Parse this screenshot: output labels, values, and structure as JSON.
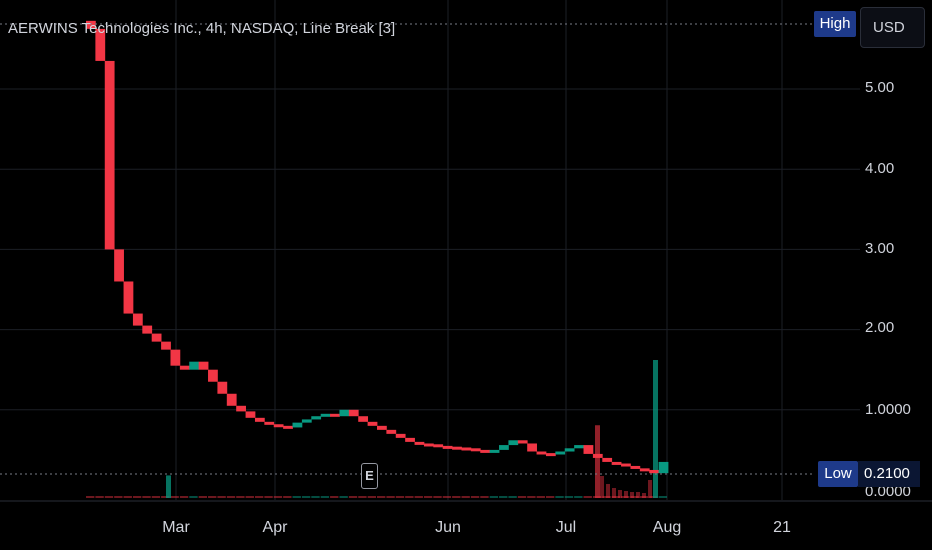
{
  "title": "AERWINS Technologies Inc., 4h, NASDAQ, Line Break [3]",
  "currency_button": "USD",
  "high_badge": "High",
  "low_badge": {
    "label": "Low",
    "value": "0.2100"
  },
  "earnings_marker": "E",
  "colors": {
    "background": "#000000",
    "up": "#089981",
    "down": "#f23645",
    "grid": "#1c1f26",
    "text": "#d1d4dc",
    "badge": "#1e3a8a"
  },
  "y_axis": {
    "ticks": [
      "5.00",
      "4.00",
      "3.00",
      "2.00",
      "1.0000",
      "0.0000"
    ]
  },
  "x_axis": {
    "ticks": [
      "Mar",
      "Apr",
      "Jun",
      "Jul",
      "Aug",
      "21"
    ]
  },
  "chart_data": {
    "type": "line_break",
    "ylim": [
      0,
      5.8
    ],
    "grid": true,
    "bricks_price": [
      5.75,
      5.35,
      3.0,
      2.6,
      2.2,
      2.05,
      1.95,
      1.85,
      1.75,
      1.55,
      1.5,
      1.6,
      1.5,
      1.35,
      1.2,
      1.05,
      0.98,
      0.9,
      0.85,
      0.82,
      0.8,
      0.78,
      0.84,
      0.88,
      0.92,
      0.95,
      0.92,
      1.0,
      0.92,
      0.85,
      0.8,
      0.75,
      0.7,
      0.65,
      0.6,
      0.58,
      0.57,
      0.55,
      0.54,
      0.53,
      0.52,
      0.5,
      0.48,
      0.5,
      0.56,
      0.62,
      0.58,
      0.48,
      0.46,
      0.45,
      0.48,
      0.52,
      0.56,
      0.45,
      0.4,
      0.35,
      0.33,
      0.3,
      0.27,
      0.25,
      0.21,
      0.35
    ],
    "bricks_dir": [
      "d",
      "d",
      "d",
      "d",
      "d",
      "d",
      "d",
      "d",
      "d",
      "d",
      "d",
      "u",
      "d",
      "d",
      "d",
      "d",
      "d",
      "d",
      "d",
      "d",
      "d",
      "d",
      "u",
      "u",
      "u",
      "u",
      "d",
      "u",
      "d",
      "d",
      "d",
      "d",
      "d",
      "d",
      "d",
      "d",
      "d",
      "d",
      "d",
      "d",
      "d",
      "d",
      "d",
      "u",
      "u",
      "u",
      "d",
      "d",
      "d",
      "d",
      "u",
      "u",
      "u",
      "d",
      "d",
      "d",
      "d",
      "d",
      "d",
      "d",
      "d",
      "u"
    ],
    "volume_spikes": [
      {
        "date": "Mar",
        "value_relative": 0.09,
        "dir": "u"
      },
      {
        "date": "Jul",
        "value_relative": 0.29,
        "dir": "d"
      },
      {
        "date": "Aug",
        "value_relative": 0.55,
        "dir": "u"
      }
    ]
  }
}
